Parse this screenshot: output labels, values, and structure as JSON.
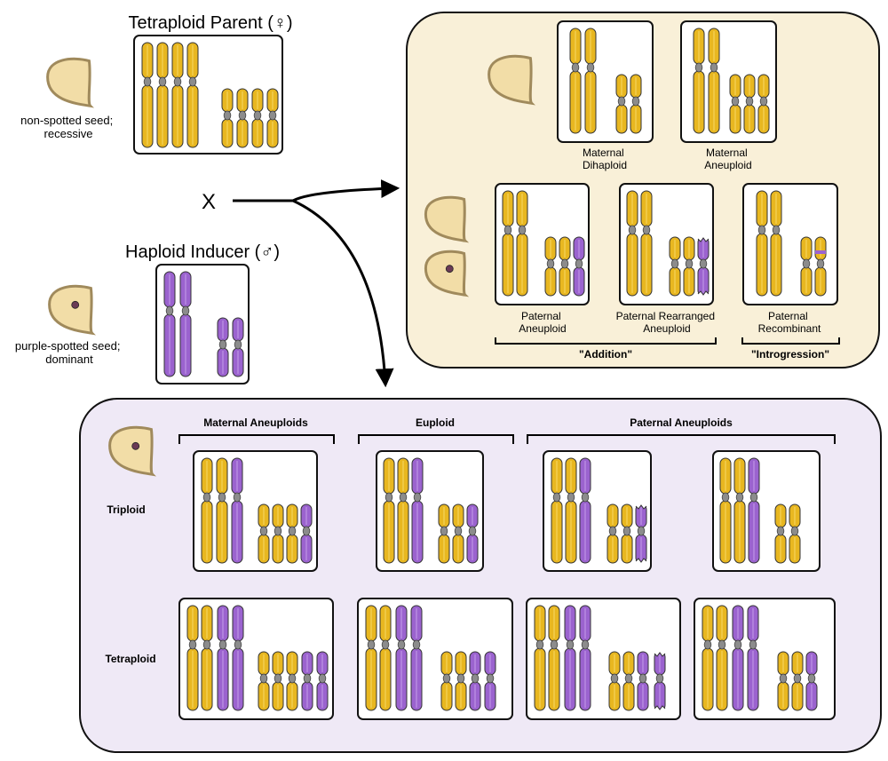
{
  "colors": {
    "maternal": "#e8b720",
    "maternal_highlight": "#f6d863",
    "paternal": "#9b63cf",
    "paternal_highlight": "#c39be8",
    "centromere": "#8c8c8c",
    "seed_fill": "#f2dda7",
    "seed_stroke": "#a08a5c",
    "spot": "#6a3a55",
    "top_panel_bg": "#f9f0d8",
    "bottom_panel_bg": "#efe9f6"
  },
  "parents": {
    "female_title": "Tetraploid Parent (♀)",
    "female_seed_label": [
      "non-spotted seed;",
      "recessive"
    ],
    "male_title": "Haploid Inducer (♂)",
    "male_seed_label": [
      "purple-spotted seed;",
      "dominant"
    ],
    "cross_symbol": "X"
  },
  "top_panel": {
    "boxes": [
      {
        "label": [
          "Maternal",
          "Dihaploid"
        ]
      },
      {
        "label": [
          "Maternal",
          "Aneuploid"
        ]
      },
      {
        "label": [
          "Paternal",
          "Aneuploid"
        ]
      },
      {
        "label": [
          "Paternal Rearranged",
          "Aneuploid"
        ]
      },
      {
        "label": [
          "Paternal",
          "Recombinant"
        ]
      }
    ],
    "group_addition": "\"Addition\"",
    "group_introgression": "\"Introgression\""
  },
  "bottom_panel": {
    "headers": {
      "maternal": "Maternal Aneuploids",
      "euploid": "Euploid",
      "paternal": "Paternal Aneuploids"
    },
    "rows": {
      "triploid": "Triploid",
      "tetraploid": "Tetraploid"
    }
  }
}
